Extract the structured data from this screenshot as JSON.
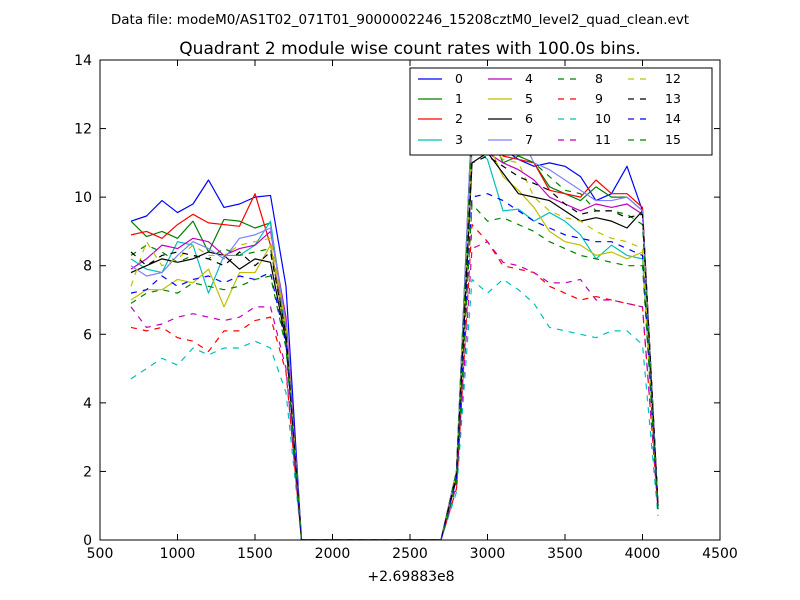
{
  "header": {
    "data_file_text": "Data file: modeM0/AS1T02_071T01_9000002246_15208cztM0_level2_quad_clean.evt"
  },
  "chart_data": {
    "type": "line",
    "title": "Quadrant 2 module wise count rates with 100.0s bins.",
    "xlabel": "",
    "ylabel": "",
    "x_offset_text": "+2.69883e8",
    "xlim": [
      500,
      4500
    ],
    "ylim": [
      0,
      14
    ],
    "x_ticks": [
      500,
      1000,
      1500,
      2000,
      2500,
      3000,
      3500,
      4000,
      4500
    ],
    "y_ticks": [
      0,
      2,
      4,
      6,
      8,
      10,
      12,
      14
    ],
    "grid": false,
    "legend_position": "top-right",
    "x": [
      700,
      800,
      900,
      1000,
      1100,
      1200,
      1300,
      1400,
      1500,
      1600,
      1700,
      1800,
      1900,
      2000,
      2100,
      2200,
      2300,
      2400,
      2500,
      2600,
      2700,
      2800,
      2900,
      3000,
      3100,
      3200,
      3300,
      3400,
      3500,
      3600,
      3700,
      3800,
      3900,
      4000,
      4100
    ],
    "series": [
      {
        "name": "0",
        "color": "#0000ff",
        "dash": "solid",
        "values": [
          9.3,
          9.45,
          9.9,
          9.55,
          9.8,
          10.5,
          9.7,
          9.8,
          10.0,
          10.05,
          7.4,
          0,
          0,
          0,
          0,
          0,
          0,
          0,
          0,
          0,
          0,
          2.0,
          12.4,
          12.0,
          11.4,
          11.1,
          10.9,
          11.0,
          10.9,
          10.6,
          9.9,
          10.1,
          10.9,
          9.6,
          1.0
        ]
      },
      {
        "name": "1",
        "color": "#008000",
        "dash": "solid",
        "values": [
          9.3,
          8.85,
          9.0,
          8.8,
          9.3,
          8.4,
          9.35,
          9.3,
          9.1,
          9.25,
          6.2,
          0,
          0,
          0,
          0,
          0,
          0,
          0,
          0,
          0,
          0,
          2.0,
          12.3,
          12.1,
          11.0,
          11.2,
          11.0,
          10.3,
          10.1,
          9.9,
          10.3,
          10.0,
          10.0,
          9.6,
          1.0
        ]
      },
      {
        "name": "2",
        "color": "#ff0000",
        "dash": "solid",
        "values": [
          8.9,
          9.0,
          8.8,
          9.2,
          9.5,
          9.25,
          9.2,
          9.15,
          10.1,
          8.6,
          6.1,
          0,
          0,
          0,
          0,
          0,
          0,
          0,
          0,
          0,
          0,
          2.0,
          11.95,
          11.95,
          11.2,
          11.1,
          11.0,
          10.2,
          10.1,
          10.0,
          10.5,
          10.1,
          10.1,
          9.7,
          1.0
        ]
      },
      {
        "name": "3",
        "color": "#00bfbf",
        "dash": "solid",
        "values": [
          8.2,
          7.9,
          7.8,
          8.7,
          8.6,
          7.2,
          8.3,
          8.3,
          8.6,
          9.3,
          6.0,
          0,
          0,
          0,
          0,
          0,
          0,
          0,
          0,
          0,
          0,
          1.8,
          11.5,
          11.1,
          9.6,
          9.65,
          9.3,
          9.55,
          9.3,
          8.9,
          8.2,
          8.6,
          8.3,
          8.2,
          1.0
        ]
      },
      {
        "name": "4",
        "color": "#bf00bf",
        "dash": "solid",
        "values": [
          7.9,
          8.2,
          8.6,
          8.5,
          8.8,
          8.7,
          8.3,
          8.5,
          8.6,
          9.0,
          6.5,
          0,
          0,
          0,
          0,
          0,
          0,
          0,
          0,
          0,
          0,
          2.0,
          11.5,
          11.3,
          11.0,
          10.8,
          10.5,
          10.0,
          9.8,
          9.6,
          9.8,
          9.7,
          9.8,
          9.5,
          1.0
        ]
      },
      {
        "name": "5",
        "color": "#bfbf00",
        "dash": "solid",
        "values": [
          7.0,
          7.3,
          7.3,
          7.6,
          7.5,
          7.9,
          6.8,
          7.8,
          7.8,
          8.6,
          5.9,
          0,
          0,
          0,
          0,
          0,
          0,
          0,
          0,
          0,
          0,
          1.8,
          12.3,
          11.6,
          10.6,
          10.2,
          9.7,
          9.0,
          8.7,
          8.6,
          8.3,
          8.4,
          8.2,
          8.4,
          0.9
        ]
      },
      {
        "name": "6",
        "color": "#000000",
        "dash": "solid",
        "values": [
          7.8,
          8.0,
          8.2,
          8.1,
          8.2,
          8.4,
          8.3,
          7.9,
          8.2,
          8.1,
          5.8,
          0,
          0,
          0,
          0,
          0,
          0,
          0,
          0,
          0,
          0,
          1.8,
          11.0,
          11.3,
          10.7,
          10.1,
          10.0,
          9.9,
          9.6,
          9.3,
          9.4,
          9.3,
          9.1,
          9.6,
          1.0
        ]
      },
      {
        "name": "7",
        "color": "#7f7fff",
        "dash": "solid",
        "values": [
          8.0,
          7.7,
          7.8,
          8.3,
          8.7,
          8.5,
          8.2,
          8.8,
          8.9,
          9.1,
          6.3,
          0,
          0,
          0,
          0,
          0,
          0,
          0,
          0,
          0,
          0,
          2.0,
          12.4,
          12.2,
          12.4,
          11.9,
          11.0,
          10.8,
          10.5,
          10.2,
          9.9,
          9.9,
          10.0,
          9.6,
          1.0
        ]
      },
      {
        "name": "8",
        "color": "#008000",
        "dash": "dashed",
        "values": [
          8.3,
          8.6,
          8.4,
          8.1,
          8.3,
          8.2,
          8.5,
          8.3,
          8.4,
          8.5,
          6.0,
          0,
          0,
          0,
          0,
          0,
          0,
          0,
          0,
          0,
          0,
          2.0,
          11.9,
          12.0,
          11.9,
          11.2,
          11.0,
          10.6,
          10.2,
          10.1,
          9.6,
          9.6,
          9.5,
          9.2,
          1.0
        ]
      },
      {
        "name": "9",
        "color": "#ff0000",
        "dash": "dashed",
        "values": [
          6.2,
          6.1,
          6.2,
          5.9,
          5.8,
          5.5,
          6.1,
          6.1,
          6.4,
          6.5,
          4.9,
          0,
          0,
          0,
          0,
          0,
          0,
          0,
          0,
          0,
          0,
          1.5,
          9.2,
          8.7,
          8.0,
          7.9,
          7.8,
          7.4,
          7.2,
          7.0,
          7.1,
          7.0,
          6.9,
          6.8,
          0.9
        ]
      },
      {
        "name": "10",
        "color": "#00bfbf",
        "dash": "dashed",
        "values": [
          4.7,
          5.0,
          5.3,
          5.1,
          5.6,
          5.4,
          5.6,
          5.6,
          5.8,
          5.6,
          4.3,
          0,
          0,
          0,
          0,
          0,
          0,
          0,
          0,
          0,
          0,
          1.4,
          7.6,
          7.2,
          7.6,
          7.3,
          6.9,
          6.2,
          6.1,
          6.0,
          5.9,
          6.1,
          6.1,
          5.7,
          0.7
        ]
      },
      {
        "name": "11",
        "color": "#bf00bf",
        "dash": "dashed",
        "values": [
          6.8,
          6.2,
          6.3,
          6.5,
          6.6,
          6.5,
          6.4,
          6.5,
          6.8,
          6.8,
          5.0,
          0,
          0,
          0,
          0,
          0,
          0,
          0,
          0,
          0,
          0,
          1.6,
          8.5,
          8.7,
          8.1,
          8.0,
          7.8,
          7.5,
          7.5,
          7.6,
          7.0,
          7.0,
          6.9,
          6.8,
          0.9
        ]
      },
      {
        "name": "12",
        "color": "#bfbf00",
        "dash": "dashed",
        "values": [
          7.4,
          8.7,
          8.0,
          8.2,
          8.6,
          8.3,
          8.3,
          8.6,
          8.7,
          8.8,
          6.2,
          0,
          0,
          0,
          0,
          0,
          0,
          0,
          0,
          0,
          0,
          1.9,
          11.3,
          11.6,
          11.1,
          11.0,
          10.0,
          9.6,
          9.4,
          9.3,
          9.0,
          8.8,
          8.7,
          8.5,
          1.0
        ]
      },
      {
        "name": "13",
        "color": "#000000",
        "dash": "dashed",
        "values": [
          8.4,
          8.0,
          8.3,
          8.4,
          8.3,
          8.2,
          8.0,
          8.4,
          8.0,
          8.4,
          6.0,
          0,
          0,
          0,
          0,
          0,
          0,
          0,
          0,
          0,
          0,
          1.9,
          11.0,
          11.2,
          10.9,
          10.6,
          10.4,
          10.2,
          9.8,
          9.5,
          9.6,
          9.6,
          9.4,
          9.5,
          1.0
        ]
      },
      {
        "name": "14",
        "color": "#0000ff",
        "dash": "dashed",
        "values": [
          7.2,
          7.3,
          7.7,
          7.4,
          7.6,
          7.7,
          7.5,
          7.7,
          7.6,
          7.8,
          5.7,
          0,
          0,
          0,
          0,
          0,
          0,
          0,
          0,
          0,
          0,
          1.8,
          10.0,
          10.1,
          9.9,
          9.6,
          9.3,
          9.1,
          8.9,
          8.8,
          8.7,
          8.7,
          8.5,
          8.3,
          0.9
        ]
      },
      {
        "name": "15",
        "color": "#008000",
        "dash": "dashed",
        "values": [
          6.9,
          7.2,
          7.3,
          7.2,
          7.5,
          7.4,
          7.3,
          7.4,
          7.6,
          7.7,
          5.6,
          0,
          0,
          0,
          0,
          0,
          0,
          0,
          0,
          0,
          0,
          1.7,
          9.8,
          9.3,
          9.4,
          9.2,
          9.0,
          8.7,
          8.5,
          8.3,
          8.2,
          8.1,
          8.0,
          8.0,
          0.9
        ]
      }
    ]
  }
}
